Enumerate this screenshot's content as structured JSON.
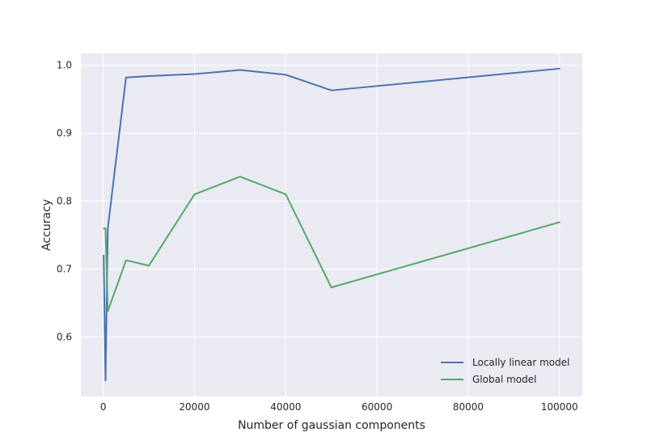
{
  "chart_data": {
    "type": "line",
    "title": "",
    "xlabel": "Number of gaussian components",
    "ylabel": "Accuracy",
    "xlim": [
      -4900,
      105000
    ],
    "ylim": [
      0.5126,
      1.0174
    ],
    "xticks": [
      0,
      20000,
      40000,
      60000,
      80000,
      100000
    ],
    "xtick_labels": [
      "0",
      "20000",
      "40000",
      "60000",
      "80000",
      "100000"
    ],
    "yticks": [
      0.6,
      0.7,
      0.8,
      0.9,
      1.0
    ],
    "ytick_labels": [
      "0.6",
      "0.7",
      "0.8",
      "0.9",
      "1.0"
    ],
    "grid": true,
    "background": "#eaeaf2",
    "legend_position": "lower-right",
    "series": [
      {
        "name": "Locally linear model",
        "color": "#4c72b0",
        "x": [
          100,
          500,
          1000,
          5000,
          10000,
          20000,
          30000,
          40000,
          50000,
          100000
        ],
        "y": [
          0.72,
          0.536,
          0.76,
          0.982,
          0.984,
          0.987,
          0.993,
          0.986,
          0.963,
          0.995
        ]
      },
      {
        "name": "Global model",
        "color": "#55a868",
        "x": [
          100,
          500,
          1000,
          5000,
          10000,
          20000,
          30000,
          40000,
          50000,
          100000
        ],
        "y": [
          0.76,
          0.76,
          0.638,
          0.713,
          0.705,
          0.81,
          0.836,
          0.81,
          0.673,
          0.769
        ]
      }
    ]
  }
}
